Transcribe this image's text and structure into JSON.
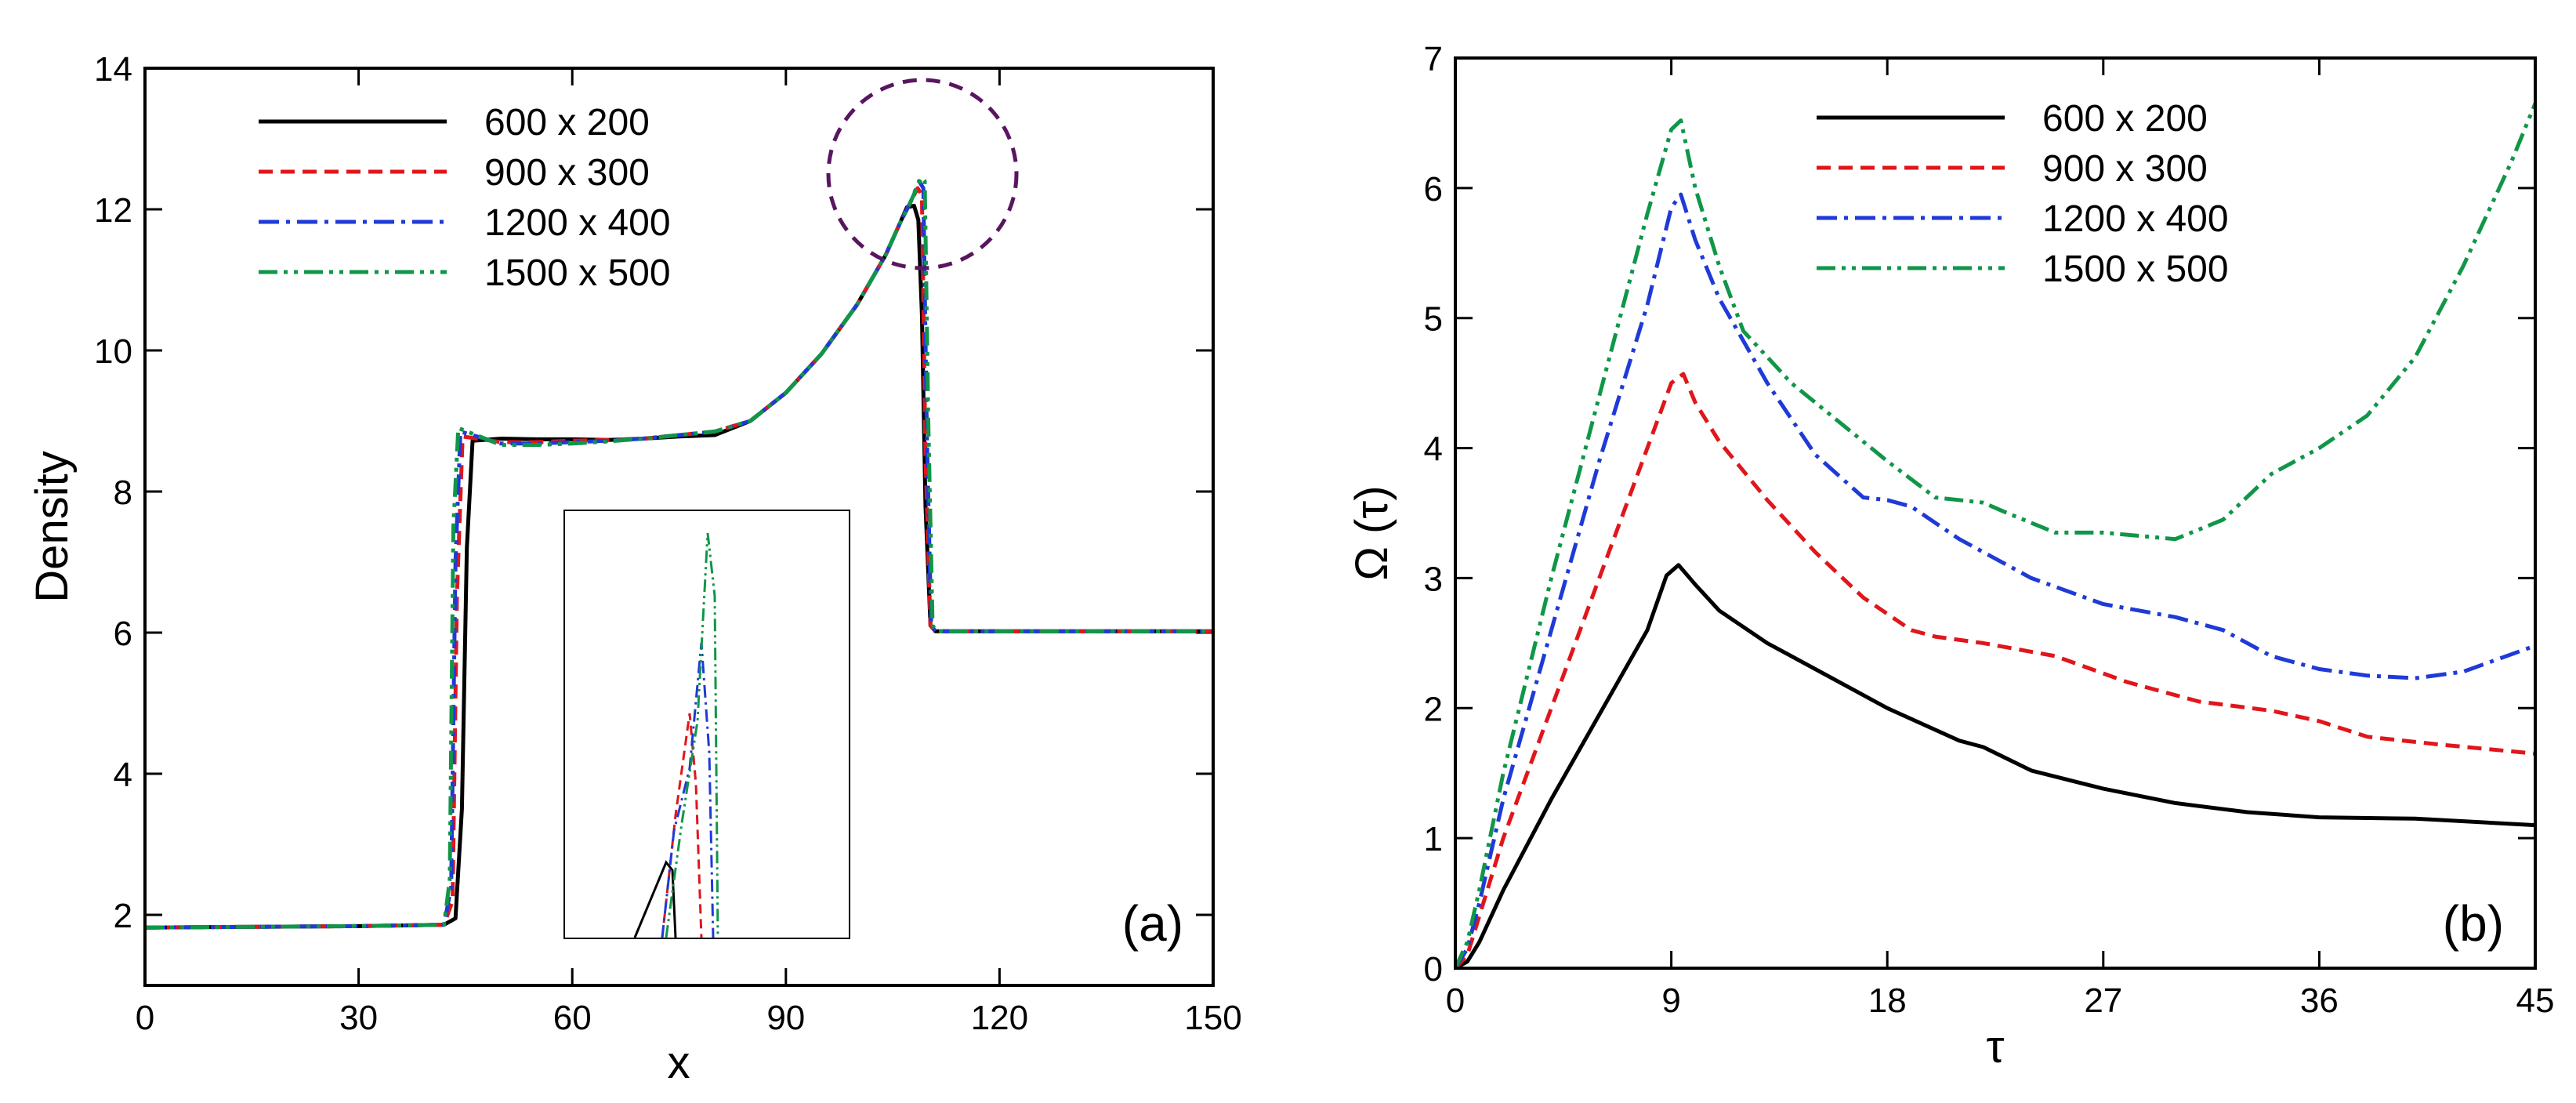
{
  "figure": {
    "panels": [
      "a",
      "b"
    ]
  },
  "chart_data": [
    {
      "panel": "(a)",
      "type": "line",
      "title": "",
      "xlabel": "x",
      "ylabel": "Density",
      "xlim": [
        0,
        150
      ],
      "ylim": [
        1,
        14
      ],
      "xticks": [
        "0",
        "30",
        "60",
        "90",
        "120",
        "150"
      ],
      "yticks": [
        "2",
        "4",
        "6",
        "8",
        "10",
        "12",
        "14"
      ],
      "legend_position": "top-left",
      "annotation_label": "(a)",
      "annotations": [
        "dashed circle highlighting the density peak near x = 108, density = 12.4",
        "inset zooming into the peak region"
      ],
      "series": [
        {
          "name": "600 x 200",
          "color": "#000000",
          "dash": "solid",
          "x": [
            0,
            30,
            42,
            43.6,
            44.5,
            45.2,
            46,
            50,
            55,
            60,
            65,
            70,
            75,
            80,
            85,
            90,
            95,
            100,
            104,
            106,
            107,
            108,
            108.6,
            109.1,
            109.6,
            110.3,
            111,
            120,
            150
          ],
          "y": [
            1.82,
            1.84,
            1.86,
            1.95,
            3.5,
            7.2,
            8.72,
            8.75,
            8.74,
            8.74,
            8.73,
            8.75,
            8.78,
            8.8,
            9.0,
            9.4,
            9.95,
            10.65,
            11.35,
            11.8,
            12.03,
            12.05,
            11.85,
            10.5,
            7.8,
            6.1,
            6.02,
            6.02,
            6.02
          ]
        },
        {
          "name": "900 x 300",
          "color": "#e0161b",
          "dash": "dash",
          "x": [
            0,
            30,
            42,
            43.2,
            43.8,
            44.6,
            50,
            55,
            60,
            65,
            70,
            75,
            80,
            85,
            90,
            95,
            100,
            104,
            106,
            107.5,
            108.5,
            109.1,
            109.6,
            110.3,
            111,
            120,
            150
          ],
          "y": [
            1.82,
            1.84,
            1.86,
            2.2,
            6.5,
            8.78,
            8.7,
            8.7,
            8.72,
            8.73,
            8.75,
            8.8,
            8.85,
            9.0,
            9.4,
            9.95,
            10.65,
            11.35,
            11.8,
            12.1,
            12.3,
            12.2,
            8.5,
            6.1,
            6.02,
            6.02,
            6.02
          ]
        },
        {
          "name": "1200 x 400",
          "color": "#1f3ad6",
          "dash": "dashdot",
          "x": [
            0,
            30,
            42,
            43.0,
            43.6,
            44.3,
            50,
            55,
            60,
            65,
            70,
            75,
            80,
            85,
            90,
            95,
            100,
            104,
            106,
            107.5,
            108.7,
            109.3,
            109.8,
            110.4,
            111,
            120,
            150
          ],
          "y": [
            1.82,
            1.84,
            1.86,
            2.4,
            7.0,
            8.85,
            8.68,
            8.68,
            8.7,
            8.72,
            8.75,
            8.8,
            8.85,
            9.0,
            9.4,
            9.95,
            10.65,
            11.35,
            11.8,
            12.1,
            12.4,
            12.3,
            8.8,
            6.1,
            6.02,
            6.02,
            6.02
          ]
        },
        {
          "name": "1500 x 500",
          "color": "#109648",
          "dash": "dashdotdot",
          "x": [
            0,
            30,
            42,
            42.8,
            43.3,
            44.0,
            50,
            55,
            60,
            65,
            70,
            75,
            80,
            85,
            90,
            95,
            100,
            104,
            106,
            107.5,
            109.0,
            109.5,
            110.0,
            110.6,
            111.2,
            120,
            150
          ],
          "y": [
            1.82,
            1.84,
            1.86,
            2.5,
            7.5,
            8.9,
            8.66,
            8.66,
            8.68,
            8.71,
            8.75,
            8.8,
            8.85,
            9.0,
            9.4,
            9.95,
            10.65,
            11.35,
            11.8,
            12.1,
            12.45,
            12.4,
            9.0,
            6.1,
            6.02,
            6.02,
            6.02
          ]
        }
      ]
    },
    {
      "panel": "(b)",
      "type": "line",
      "title": "",
      "xlabel": "τ",
      "ylabel": "Ω (τ)",
      "xlim": [
        0,
        45
      ],
      "ylim": [
        0,
        7
      ],
      "xticks": [
        "0",
        "9",
        "18",
        "27",
        "36",
        "45"
      ],
      "yticks": [
        "0",
        "1",
        "2",
        "3",
        "4",
        "5",
        "6",
        "7"
      ],
      "legend_position": "top-center",
      "annotation_label": "(b)",
      "series": [
        {
          "name": "600 x 200",
          "color": "#000000",
          "dash": "solid",
          "x": [
            0,
            0.5,
            1,
            2,
            4,
            6,
            8,
            8.8,
            9.3,
            10,
            11,
            13,
            15,
            18,
            21,
            22,
            24,
            27,
            30,
            33,
            36,
            40,
            45
          ],
          "y": [
            0,
            0.05,
            0.2,
            0.6,
            1.3,
            1.95,
            2.6,
            3.02,
            3.1,
            2.95,
            2.75,
            2.5,
            2.3,
            2.0,
            1.75,
            1.7,
            1.52,
            1.38,
            1.27,
            1.2,
            1.16,
            1.15,
            1.1
          ]
        },
        {
          "name": "900 x 300",
          "color": "#e0161b",
          "dash": "dash",
          "x": [
            0,
            0.5,
            1,
            2,
            4,
            6,
            8,
            9,
            9.5,
            10,
            11,
            13,
            15,
            17,
            19,
            20,
            22,
            25,
            28,
            31,
            34,
            36,
            38,
            41,
            45
          ],
          "y": [
            0,
            0.1,
            0.4,
            1.0,
            2.0,
            3.0,
            4.0,
            4.5,
            4.57,
            4.35,
            4.05,
            3.6,
            3.2,
            2.85,
            2.6,
            2.55,
            2.5,
            2.4,
            2.2,
            2.05,
            1.98,
            1.9,
            1.78,
            1.72,
            1.65
          ]
        },
        {
          "name": "1200 x 400",
          "color": "#1f3ad6",
          "dash": "dashdot",
          "x": [
            0,
            0.5,
            1,
            2,
            4,
            6,
            8,
            9,
            9.4,
            10,
            11,
            13,
            15,
            17,
            18,
            19,
            21,
            24,
            27,
            30,
            32,
            34,
            36,
            38,
            40,
            42,
            45
          ],
          "y": [
            0,
            0.15,
            0.5,
            1.3,
            2.6,
            3.9,
            5.1,
            5.85,
            5.95,
            5.6,
            5.15,
            4.5,
            3.95,
            3.62,
            3.6,
            3.55,
            3.3,
            3.0,
            2.8,
            2.7,
            2.6,
            2.4,
            2.3,
            2.25,
            2.23,
            2.28,
            2.48
          ]
        },
        {
          "name": "1500 x 500",
          "color": "#109648",
          "dash": "dashdotdot",
          "x": [
            0,
            0.5,
            1,
            2,
            4,
            6,
            8,
            9,
            9.4,
            10,
            11,
            12,
            14,
            16,
            18,
            20,
            22,
            23,
            25,
            27,
            30,
            32,
            34,
            36,
            38,
            40,
            42,
            44,
            45
          ],
          "y": [
            0,
            0.2,
            0.6,
            1.5,
            3.0,
            4.4,
            5.8,
            6.45,
            6.52,
            6.0,
            5.4,
            4.9,
            4.5,
            4.2,
            3.9,
            3.62,
            3.58,
            3.5,
            3.35,
            3.35,
            3.3,
            3.45,
            3.8,
            4.0,
            4.25,
            4.7,
            5.4,
            6.2,
            6.65
          ]
        }
      ]
    }
  ]
}
